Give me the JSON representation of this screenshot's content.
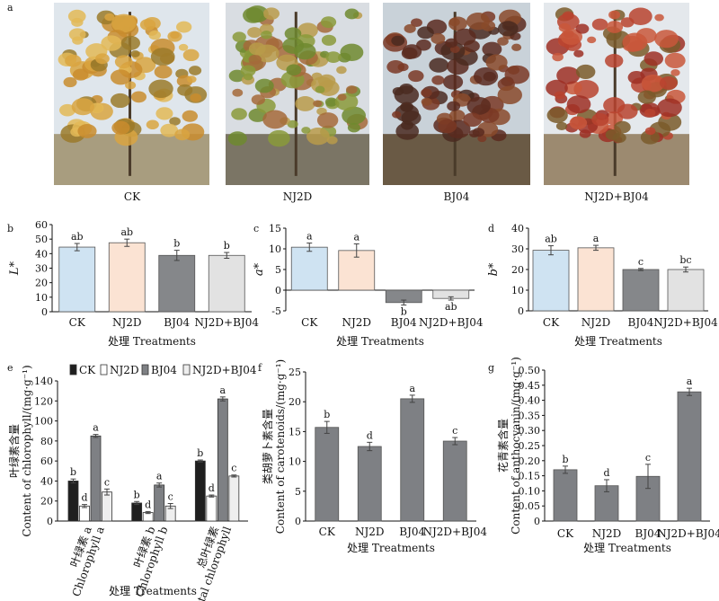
{
  "panel_letters": [
    "a",
    "b",
    "c",
    "d",
    "e",
    "f",
    "g"
  ],
  "photos": [
    {
      "label": "CK",
      "colors": {
        "sky": "#dfe6ec",
        "ground": "#a89d7f",
        "leaf": [
          "#d9a441",
          "#c98c2e",
          "#e3b857",
          "#9b7a2a"
        ]
      }
    },
    {
      "label": "NJ2D",
      "colors": {
        "sky": "#d9dde2",
        "ground": "#7b7565",
        "leaf": [
          "#8a9a3a",
          "#b99b4a",
          "#6f8a2f",
          "#a56a3a"
        ]
      }
    },
    {
      "label": "BJ04",
      "colors": {
        "sky": "#c9d2d9",
        "ground": "#6a5a45",
        "leaf": [
          "#5b2a1e",
          "#7a3824",
          "#4a2a20",
          "#8a4a2a"
        ]
      }
    },
    {
      "label": "NJ2D+BJ04",
      "colors": {
        "sky": "#e4e8ec",
        "ground": "#9c8a70",
        "leaf": [
          "#b8432f",
          "#9e2f24",
          "#c9573b",
          "#7a5a2a"
        ]
      }
    }
  ],
  "chart_data": [
    {
      "id": "b",
      "type": "bar",
      "categories": [
        "CK",
        "NJ2D",
        "BJ04",
        "NJ2D+BJ04"
      ],
      "values": [
        44.5,
        47.5,
        38.8,
        38.8
      ],
      "errors": [
        2.5,
        2.5,
        3.5,
        2.0
      ],
      "letters": [
        "ab",
        "ab",
        "b",
        "b"
      ],
      "colors": [
        "#cfe3f2",
        "#fbe3d3",
        "#85878a",
        "#e2e2e2"
      ],
      "ylabel": "L*",
      "xlabel": "处理 Treatments",
      "ylim": [
        0,
        60
      ],
      "yticks": [
        0,
        10,
        20,
        30,
        40,
        50,
        60
      ]
    },
    {
      "id": "c",
      "type": "bar",
      "categories": [
        "CK",
        "NJ2D",
        "BJ04",
        "NJ2D+BJ04"
      ],
      "values": [
        10.4,
        9.6,
        -3.0,
        -2.0
      ],
      "errors": [
        1.0,
        1.6,
        0.6,
        0.4
      ],
      "letters": [
        "a",
        "a",
        "b",
        "ab"
      ],
      "colors": [
        "#cfe3f2",
        "#fbe3d3",
        "#85878a",
        "#e2e2e2"
      ],
      "ylabel": "a*",
      "xlabel": "处理 Treatments",
      "ylim": [
        -5,
        15
      ],
      "yticks": [
        -5,
        0,
        5,
        10,
        15
      ]
    },
    {
      "id": "d",
      "type": "bar",
      "categories": [
        "CK",
        "NJ2D",
        "BJ04",
        "NJ2D+BJ04"
      ],
      "values": [
        29.3,
        30.5,
        20.0,
        20.0
      ],
      "errors": [
        2.2,
        1.2,
        0.5,
        1.2
      ],
      "letters": [
        "ab",
        "a",
        "c",
        "bc"
      ],
      "colors": [
        "#cfe3f2",
        "#fbe3d3",
        "#85878a",
        "#e2e2e2"
      ],
      "ylabel": "b*",
      "xlabel": "处理 Treatments",
      "ylim": [
        0,
        40
      ],
      "yticks": [
        0,
        10,
        20,
        30,
        40
      ]
    },
    {
      "id": "e",
      "type": "bar",
      "categories": [
        "叶绿素 a|Chlorophyll a",
        "叶绿素 b|Chlorophyll b",
        "总叶绿素|Total chlorophyll"
      ],
      "series": [
        {
          "name": "CK",
          "values": [
            40,
            18,
            60
          ],
          "errors": [
            2,
            1.5,
            1
          ],
          "letters": [
            "b",
            "b",
            "b"
          ],
          "color": "#1f1f1f"
        },
        {
          "name": "NJ2D",
          "values": [
            15,
            8.5,
            25
          ],
          "errors": [
            1.5,
            1,
            1
          ],
          "letters": [
            "d",
            "d",
            "d"
          ],
          "color": "#ffffff"
        },
        {
          "name": "BJ04",
          "values": [
            85,
            36,
            122
          ],
          "errors": [
            1.5,
            2,
            2
          ],
          "letters": [
            "a",
            "a",
            "a"
          ],
          "color": "#7e8084"
        },
        {
          "name": "NJ2D+BJ04",
          "values": [
            29,
            15,
            45
          ],
          "errors": [
            3,
            2.5,
            1
          ],
          "letters": [
            "c",
            "c",
            "c"
          ],
          "color": "#eeeeee"
        }
      ],
      "ylabel_cn": "叶绿素含量",
      "ylabel_en": "Content of chlorophyll/(mg·g⁻¹)",
      "xlabel": "处理 Treatments",
      "ylim": [
        0,
        140
      ],
      "yticks": [
        0,
        20,
        40,
        60,
        80,
        100,
        120,
        140
      ]
    },
    {
      "id": "f",
      "type": "bar",
      "categories": [
        "CK",
        "NJ2D",
        "BJ04",
        "NJ2D+BJ04"
      ],
      "values": [
        15.7,
        12.5,
        20.5,
        13.4
      ],
      "errors": [
        1.0,
        0.7,
        0.6,
        0.6
      ],
      "letters": [
        "b",
        "d",
        "a",
        "c"
      ],
      "colors": [
        "#7e8084",
        "#7e8084",
        "#7e8084",
        "#7e8084"
      ],
      "ylabel_cn": "类胡萝卜素含量",
      "ylabel_en": "Content of carotenoids/(mg·g⁻¹)",
      "xlabel": "处理 Treatments",
      "ylim": [
        0,
        25
      ],
      "yticks": [
        0,
        5,
        10,
        15,
        20,
        25
      ]
    },
    {
      "id": "g",
      "type": "bar",
      "categories": [
        "CK",
        "NJ2D",
        "BJ04",
        "NJ2D+BJ04"
      ],
      "values": [
        0.17,
        0.117,
        0.148,
        0.428
      ],
      "errors": [
        0.012,
        0.02,
        0.04,
        0.012
      ],
      "letters": [
        "b",
        "d",
        "c",
        "a"
      ],
      "colors": [
        "#7e8084",
        "#7e8084",
        "#7e8084",
        "#7e8084"
      ],
      "ylabel_cn": "花青素含量",
      "ylabel_en": "Content of anthocyanin/(mg·g⁻¹)",
      "xlabel": "处理 Treatments",
      "ylim": [
        0,
        0.5
      ],
      "yticks": [
        "0",
        "0.05",
        "0.10",
        "0.15",
        "0.20",
        "0.25",
        "0.30",
        "0.35",
        "0.40",
        "0.45",
        "0.50"
      ]
    }
  ]
}
